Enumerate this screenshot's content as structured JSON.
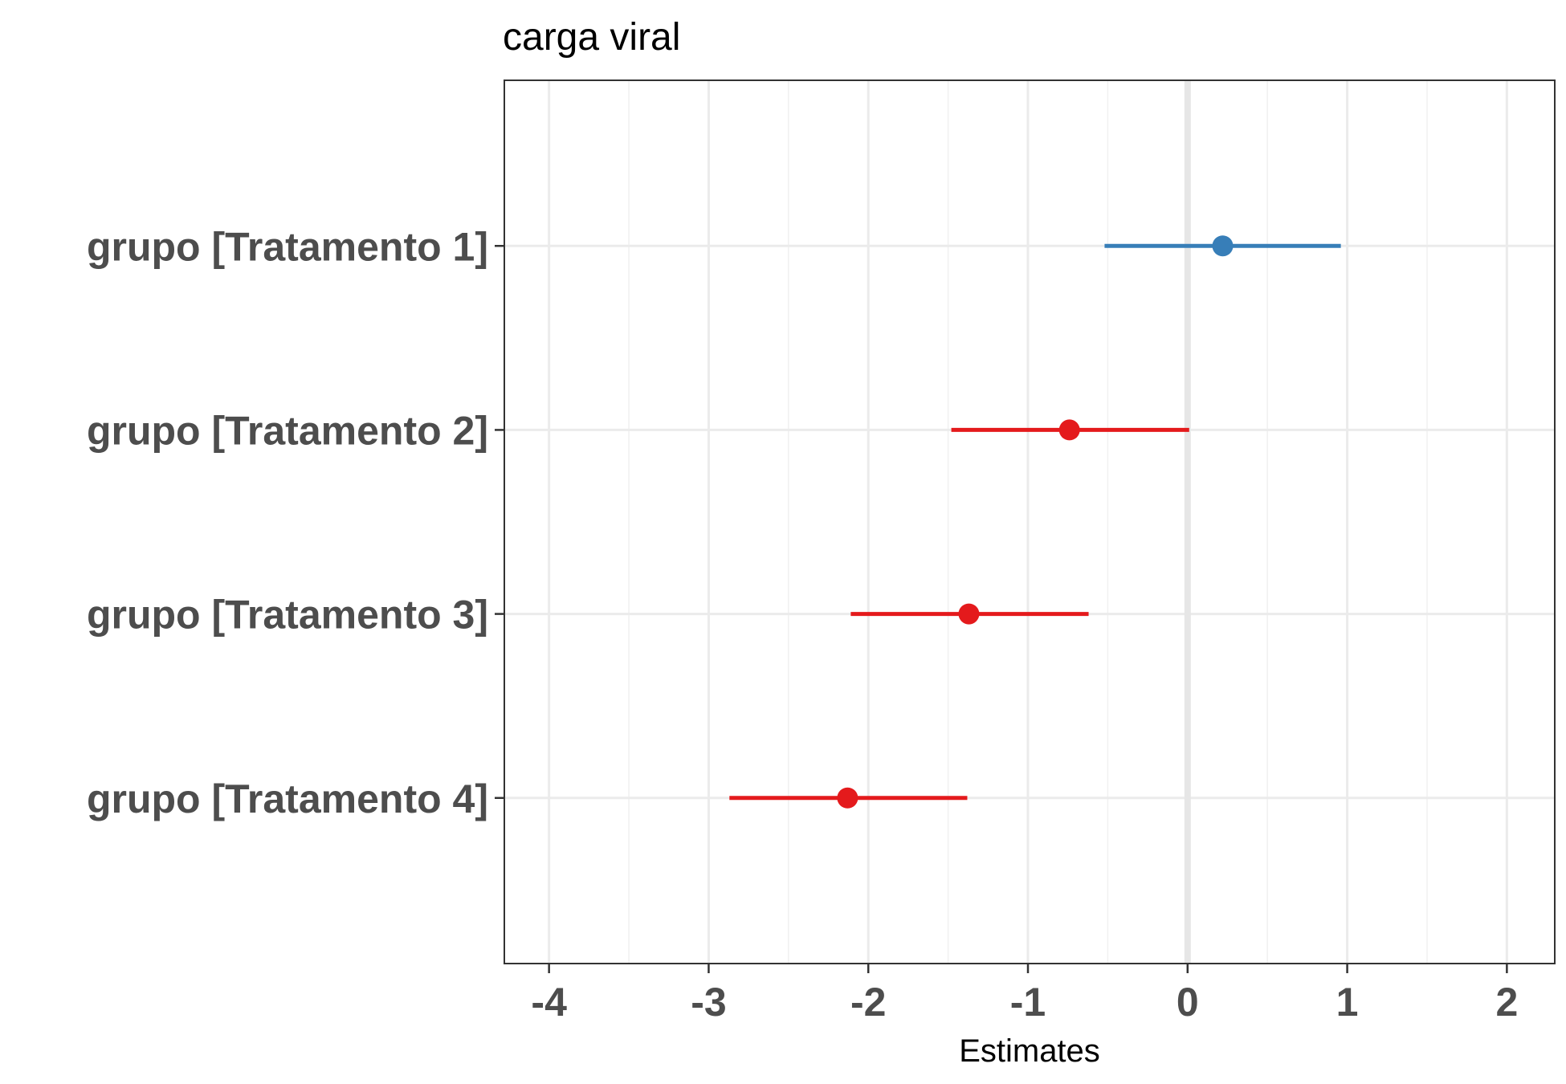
{
  "chart_data": {
    "type": "forest",
    "title": "carga viral",
    "xlabel": "Estimates",
    "ylabel": "",
    "xlim": [
      -4.28,
      2.3
    ],
    "xticks": [
      -4,
      -3,
      -2,
      -1,
      0,
      1,
      2
    ],
    "xtick_labels": [
      "-4",
      "-3",
      "-2",
      "-1",
      "0",
      "1",
      "2"
    ],
    "reference_line": 0,
    "grid": true,
    "categories": [
      "grupo [Tratamento 1]",
      "grupo [Tratamento 2]",
      "grupo [Tratamento 3]",
      "grupo [Tratamento 4]"
    ],
    "points": [
      {
        "label": "grupo [Tratamento 1]",
        "estimate": 0.22,
        "ci_low": -0.52,
        "ci_high": 0.96,
        "color": "#377eb8"
      },
      {
        "label": "grupo [Tratamento 2]",
        "estimate": -0.74,
        "ci_low": -1.48,
        "ci_high": 0.01,
        "color": "#e41a1c"
      },
      {
        "label": "grupo [Tratamento 3]",
        "estimate": -1.37,
        "ci_low": -2.11,
        "ci_high": -0.62,
        "color": "#e41a1c"
      },
      {
        "label": "grupo [Tratamento 4]",
        "estimate": -2.13,
        "ci_low": -2.87,
        "ci_high": -1.38,
        "color": "#e41a1c"
      }
    ]
  }
}
